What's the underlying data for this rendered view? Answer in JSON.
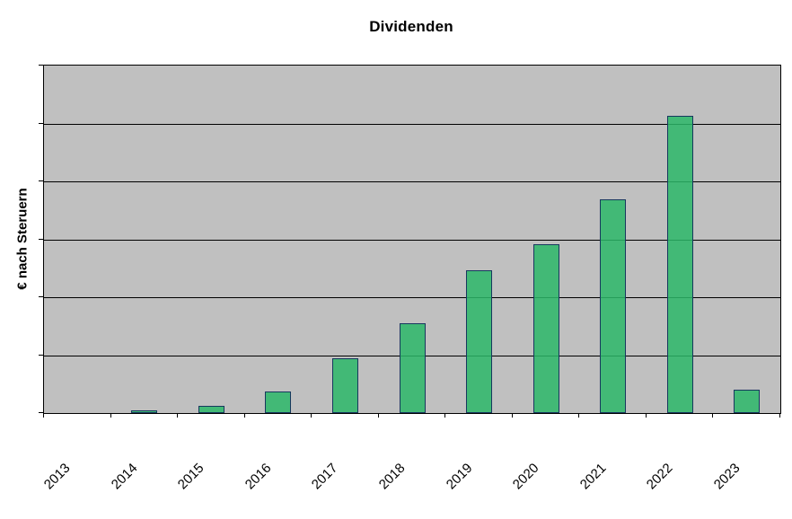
{
  "title": "Dividenden",
  "chart_data": {
    "type": "bar",
    "title": "Dividenden",
    "xlabel": "",
    "ylabel": "€ nach Steruern",
    "categories": [
      "2013",
      "2014",
      "2015",
      "2016",
      "2017",
      "2018",
      "2019",
      "2020",
      "2021",
      "2022",
      "2023"
    ],
    "values": [
      0,
      0.04,
      0.13,
      0.38,
      0.95,
      1.55,
      2.47,
      2.91,
      3.69,
      5.13,
      0.4
    ],
    "ylim": [
      0,
      6
    ],
    "y_tick_labels": "none (axis has no numeric labels; values given in gridline units, one unit per gridline interval)",
    "gridlines": "5 inner horizontal black gridlines plus top and bottom plot border",
    "legend": "none",
    "plot_background": "#C0C0C0"
  },
  "colors": {
    "bar_fill": "#41B875",
    "bar_border": "#17375E",
    "plot_background": "#C0C0C0",
    "page_background": "#FFFFFF",
    "gridline": "#000000",
    "text": "#000000"
  }
}
